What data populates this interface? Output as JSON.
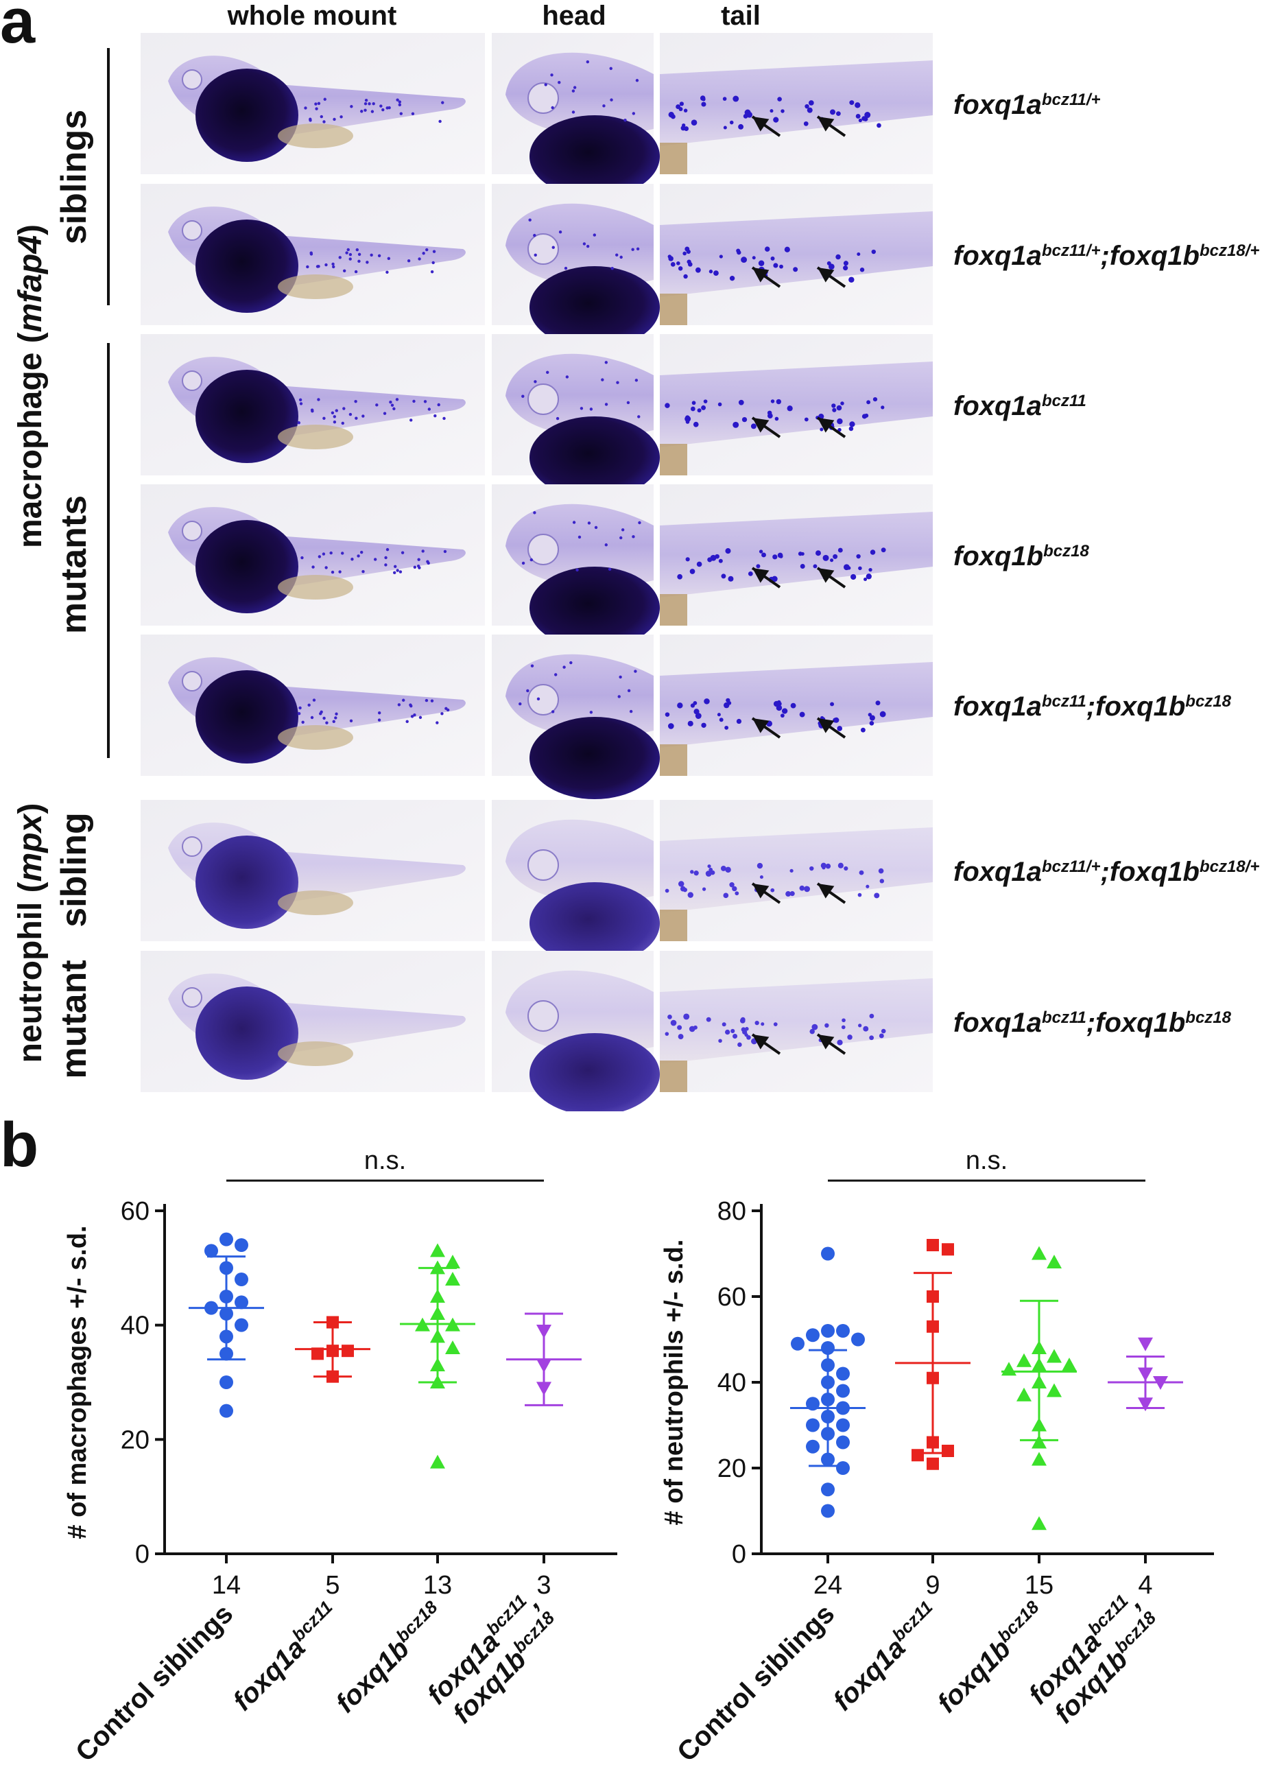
{
  "panel_a": {
    "letter": "a",
    "column_headers": [
      "whole mount",
      "head",
      "tail"
    ],
    "group_labels": {
      "macrophage": [
        "macrophage (",
        "mfap4",
        ")"
      ],
      "neutrophil": [
        "neutrophil (",
        "mpx",
        ")"
      ],
      "siblings": "siblings",
      "mutants": "mutants",
      "sibling": "sibling",
      "mutant": "mutant"
    },
    "rows": [
      {
        "stain": "purple",
        "genotype": [
          {
            "t": "foxq1a",
            "sup": "bcz11/+"
          }
        ]
      },
      {
        "stain": "purple",
        "genotype": [
          {
            "t": "foxq1a",
            "sup": "bcz11/+"
          },
          {
            "t": ";foxq1b",
            "sup": "bcz18/+"
          }
        ]
      },
      {
        "stain": "purple",
        "genotype": [
          {
            "t": "foxq1a",
            "sup": "bcz11"
          }
        ]
      },
      {
        "stain": "purple",
        "genotype": [
          {
            "t": "foxq1b",
            "sup": "bcz18"
          }
        ]
      },
      {
        "stain": "purple",
        "genotype": [
          {
            "t": "foxq1a",
            "sup": "bcz11"
          },
          {
            "t": ";foxq1b",
            "sup": "bcz18"
          }
        ]
      },
      {
        "stain": "light",
        "genotype": [
          {
            "t": "foxq1a",
            "sup": "bcz11/+"
          },
          {
            "t": ";foxq1b",
            "sup": "bcz18/+"
          }
        ]
      },
      {
        "stain": "light",
        "genotype": [
          {
            "t": "foxq1a",
            "sup": "bcz11"
          },
          {
            "t": ";foxq1b",
            "sup": "bcz18"
          }
        ]
      }
    ]
  },
  "panel_b": {
    "letter": "b"
  },
  "chart_data": [
    {
      "type": "scatter",
      "subtype": "dot plot with mean and s.d. error bars",
      "ylabel": "# of macrophages +/- s.d.",
      "ylim": [
        0,
        60
      ],
      "yticks": [
        0,
        20,
        40,
        60
      ],
      "annotation": "n.s.",
      "categories": [
        {
          "label": "Control siblings",
          "n": "14",
          "color": "#2b5fe0",
          "marker": "circle",
          "mean": 43,
          "sd_low": 34,
          "sd_high": 52,
          "points": [
            55,
            54,
            53,
            50,
            48,
            45,
            44,
            43,
            42,
            40,
            38,
            35,
            30,
            25
          ]
        },
        {
          "label": [
            {
              "t": "foxq1a",
              "sup": "bcz11"
            }
          ],
          "n": "5",
          "color": "#e8231e",
          "marker": "square",
          "mean": 35.8,
          "sd_low": 31,
          "sd_high": 40.5,
          "points": [
            40.5,
            35.5,
            35,
            35.5,
            31
          ]
        },
        {
          "label": [
            {
              "t": "foxq1b",
              "sup": "bcz18"
            }
          ],
          "n": "13",
          "color": "#3be02a",
          "marker": "triangle-up",
          "mean": 40.2,
          "sd_low": 30,
          "sd_high": 50,
          "points": [
            53,
            51,
            50,
            48,
            45,
            42,
            40,
            40,
            38,
            36,
            33,
            30,
            16
          ]
        },
        {
          "label": [
            [
              {
                "t": "foxq1a",
                "sup": "bcz11"
              },
              {
                "t": ",",
                "sup": ""
              }
            ],
            [
              {
                "t": "foxq1b",
                "sup": "bcz18"
              }
            ]
          ],
          "n": "3",
          "color": "#a341e0",
          "marker": "triangle-down",
          "mean": 34,
          "sd_low": 26,
          "sd_high": 42,
          "points": [
            39,
            33,
            29
          ]
        }
      ]
    },
    {
      "type": "scatter",
      "subtype": "dot plot with mean and s.d. error bars",
      "ylabel": "# of neutrophils +/- s.d.",
      "ylim": [
        0,
        80
      ],
      "yticks": [
        0,
        20,
        40,
        60,
        80
      ],
      "annotation": "n.s.",
      "categories": [
        {
          "label": "Control siblings",
          "n": "24",
          "color": "#2b5fe0",
          "marker": "circle",
          "mean": 34,
          "sd_low": 20.5,
          "sd_high": 47.5,
          "points": [
            70,
            52,
            52,
            51,
            50,
            49,
            48,
            44,
            42,
            40,
            38,
            36,
            35,
            34,
            32,
            30,
            30,
            28,
            26,
            25,
            22,
            20,
            15,
            10
          ]
        },
        {
          "label": [
            {
              "t": "foxq1a",
              "sup": "bcz11"
            }
          ],
          "n": "9",
          "color": "#e8231e",
          "marker": "square",
          "mean": 44.5,
          "sd_low": 23.5,
          "sd_high": 65.5,
          "points": [
            72,
            71,
            60,
            53,
            41,
            26,
            24,
            23,
            21
          ]
        },
        {
          "label": [
            {
              "t": "foxq1b",
              "sup": "bcz18"
            }
          ],
          "n": "15",
          "color": "#3be02a",
          "marker": "triangle-up",
          "mean": 42.5,
          "sd_low": 26.5,
          "sd_high": 59,
          "points": [
            70,
            68,
            48,
            46,
            45,
            44,
            44,
            43,
            40,
            38,
            37,
            30,
            26,
            22,
            7
          ]
        },
        {
          "label": [
            [
              {
                "t": "foxq1a",
                "sup": "bcz11"
              },
              {
                "t": ",",
                "sup": ""
              }
            ],
            [
              {
                "t": "foxq1b",
                "sup": "bcz18"
              }
            ]
          ],
          "n": "4",
          "color": "#a341e0",
          "marker": "triangle-down",
          "mean": 40,
          "sd_low": 34,
          "sd_high": 46,
          "points": [
            49,
            42,
            40,
            35
          ]
        }
      ]
    }
  ]
}
